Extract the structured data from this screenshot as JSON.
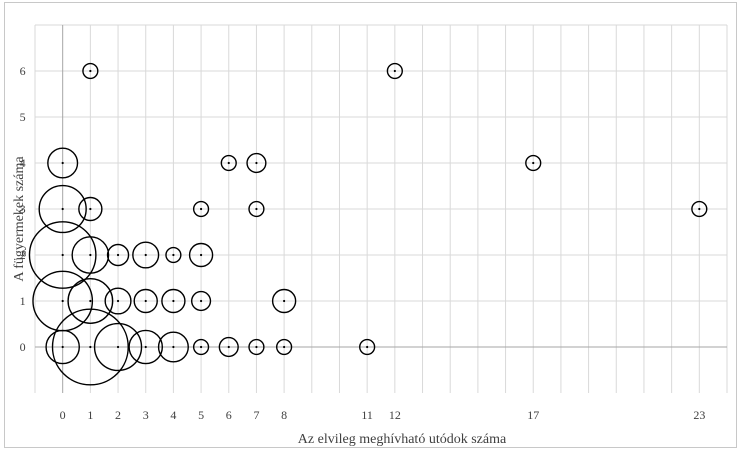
{
  "chart_data": {
    "type": "bubble",
    "title": "",
    "xlabel": "Az elvileg meghívható utódok száma",
    "ylabel": "A fügyermekek száma",
    "xlim": [
      -1,
      24
    ],
    "ylim": [
      -1,
      7
    ],
    "x_tick_labels": [
      0,
      1,
      2,
      3,
      4,
      5,
      6,
      7,
      8,
      11,
      12,
      17,
      23
    ],
    "y_tick_labels": [
      0,
      1,
      2,
      3,
      4,
      5,
      6
    ],
    "grid": true,
    "marker_color": "#000000",
    "grid_color": "#d9d9d9",
    "points": [
      {
        "x": 0,
        "y": 0,
        "size": 2.5
      },
      {
        "x": 1,
        "y": 0,
        "size": 13
      },
      {
        "x": 2,
        "y": 0,
        "size": 5
      },
      {
        "x": 3,
        "y": 0,
        "size": 2.5
      },
      {
        "x": 4,
        "y": 0,
        "size": 2
      },
      {
        "x": 5,
        "y": 0,
        "size": 0.5
      },
      {
        "x": 6,
        "y": 0,
        "size": 0.8
      },
      {
        "x": 7,
        "y": 0,
        "size": 0.5
      },
      {
        "x": 8,
        "y": 0,
        "size": 0.5
      },
      {
        "x": 11,
        "y": 0,
        "size": 0.5
      },
      {
        "x": 0,
        "y": 1,
        "size": 8
      },
      {
        "x": 1,
        "y": 1,
        "size": 4.5
      },
      {
        "x": 2,
        "y": 1,
        "size": 1.5
      },
      {
        "x": 3,
        "y": 1,
        "size": 1.2
      },
      {
        "x": 4,
        "y": 1,
        "size": 1.2
      },
      {
        "x": 5,
        "y": 1,
        "size": 0.8
      },
      {
        "x": 8,
        "y": 1,
        "size": 1.2
      },
      {
        "x": 0,
        "y": 2,
        "size": 10
      },
      {
        "x": 1,
        "y": 2,
        "size": 3
      },
      {
        "x": 2,
        "y": 2,
        "size": 1
      },
      {
        "x": 3,
        "y": 2,
        "size": 1.5
      },
      {
        "x": 4,
        "y": 2,
        "size": 0.5
      },
      {
        "x": 5,
        "y": 2,
        "size": 1.2
      },
      {
        "x": 0,
        "y": 3,
        "size": 5
      },
      {
        "x": 1,
        "y": 3,
        "size": 1.2
      },
      {
        "x": 5,
        "y": 3,
        "size": 0.5
      },
      {
        "x": 7,
        "y": 3,
        "size": 0.5
      },
      {
        "x": 23,
        "y": 3,
        "size": 0.5
      },
      {
        "x": 0,
        "y": 4,
        "size": 2
      },
      {
        "x": 6,
        "y": 4,
        "size": 0.5
      },
      {
        "x": 7,
        "y": 4,
        "size": 0.8
      },
      {
        "x": 17,
        "y": 4,
        "size": 0.5
      },
      {
        "x": 1,
        "y": 6,
        "size": 0.5
      },
      {
        "x": 12,
        "y": 6,
        "size": 0.5
      }
    ]
  }
}
